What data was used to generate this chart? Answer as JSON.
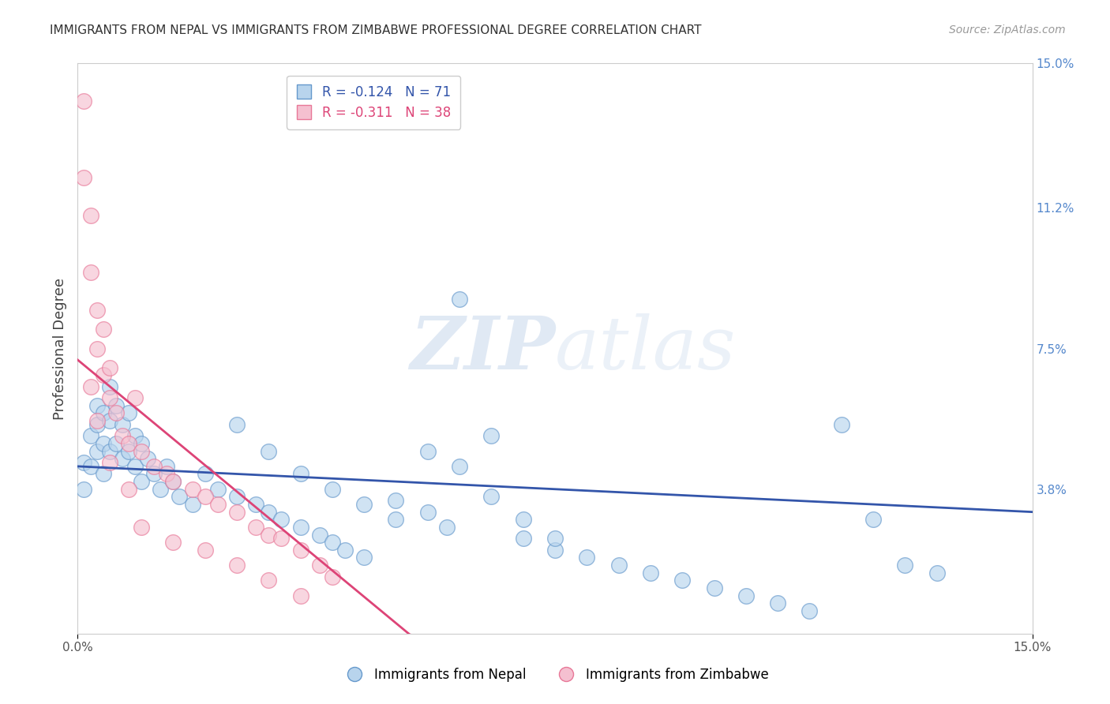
{
  "title": "IMMIGRANTS FROM NEPAL VS IMMIGRANTS FROM ZIMBABWE PROFESSIONAL DEGREE CORRELATION CHART",
  "source": "Source: ZipAtlas.com",
  "ylabel": "Professional Degree",
  "xlim": [
    0.0,
    0.15
  ],
  "ylim": [
    0.0,
    0.15
  ],
  "nepal_R": -0.124,
  "nepal_N": 71,
  "zimbabwe_R": -0.311,
  "zimbabwe_N": 38,
  "nepal_color": "#b8d4ed",
  "nepal_edge_color": "#6699cc",
  "zimbabwe_color": "#f5c0d0",
  "zimbabwe_edge_color": "#e87898",
  "nepal_line_color": "#3355aa",
  "zimbabwe_line_color": "#dd4477",
  "watermark_zip": "ZIP",
  "watermark_atlas": "atlas",
  "background_color": "#ffffff",
  "grid_color": "#cccccc",
  "legend_nepal_label": "Immigrants from Nepal",
  "legend_zimbabwe_label": "Immigrants from Zimbabwe",
  "nepal_scatter_x": [
    0.001,
    0.001,
    0.002,
    0.002,
    0.003,
    0.003,
    0.003,
    0.004,
    0.004,
    0.004,
    0.005,
    0.005,
    0.005,
    0.006,
    0.006,
    0.007,
    0.007,
    0.008,
    0.008,
    0.009,
    0.009,
    0.01,
    0.01,
    0.011,
    0.012,
    0.013,
    0.014,
    0.015,
    0.016,
    0.018,
    0.02,
    0.022,
    0.025,
    0.028,
    0.03,
    0.032,
    0.035,
    0.038,
    0.04,
    0.042,
    0.045,
    0.05,
    0.055,
    0.058,
    0.06,
    0.065,
    0.07,
    0.075,
    0.08,
    0.085,
    0.09,
    0.095,
    0.1,
    0.105,
    0.11,
    0.115,
    0.12,
    0.125,
    0.13,
    0.135,
    0.025,
    0.03,
    0.035,
    0.04,
    0.045,
    0.05,
    0.055,
    0.06,
    0.065,
    0.07,
    0.075
  ],
  "nepal_scatter_y": [
    0.045,
    0.038,
    0.052,
    0.044,
    0.06,
    0.055,
    0.048,
    0.058,
    0.05,
    0.042,
    0.065,
    0.056,
    0.048,
    0.06,
    0.05,
    0.055,
    0.046,
    0.058,
    0.048,
    0.052,
    0.044,
    0.05,
    0.04,
    0.046,
    0.042,
    0.038,
    0.044,
    0.04,
    0.036,
    0.034,
    0.042,
    0.038,
    0.036,
    0.034,
    0.032,
    0.03,
    0.028,
    0.026,
    0.024,
    0.022,
    0.02,
    0.035,
    0.032,
    0.028,
    0.088,
    0.052,
    0.025,
    0.022,
    0.02,
    0.018,
    0.016,
    0.014,
    0.012,
    0.01,
    0.008,
    0.006,
    0.055,
    0.03,
    0.018,
    0.016,
    0.055,
    0.048,
    0.042,
    0.038,
    0.034,
    0.03,
    0.048,
    0.044,
    0.036,
    0.03,
    0.025
  ],
  "zimbabwe_scatter_x": [
    0.001,
    0.001,
    0.002,
    0.002,
    0.003,
    0.003,
    0.004,
    0.004,
    0.005,
    0.005,
    0.006,
    0.007,
    0.008,
    0.009,
    0.01,
    0.012,
    0.014,
    0.015,
    0.018,
    0.02,
    0.022,
    0.025,
    0.028,
    0.03,
    0.032,
    0.035,
    0.038,
    0.04,
    0.002,
    0.003,
    0.005,
    0.008,
    0.01,
    0.015,
    0.02,
    0.025,
    0.03,
    0.035
  ],
  "zimbabwe_scatter_y": [
    0.14,
    0.12,
    0.11,
    0.095,
    0.085,
    0.075,
    0.08,
    0.068,
    0.07,
    0.062,
    0.058,
    0.052,
    0.05,
    0.062,
    0.048,
    0.044,
    0.042,
    0.04,
    0.038,
    0.036,
    0.034,
    0.032,
    0.028,
    0.026,
    0.025,
    0.022,
    0.018,
    0.015,
    0.065,
    0.056,
    0.045,
    0.038,
    0.028,
    0.024,
    0.022,
    0.018,
    0.014,
    0.01
  ],
  "nepal_line_x0": 0.0,
  "nepal_line_y0": 0.044,
  "nepal_line_x1": 0.15,
  "nepal_line_y1": 0.032,
  "zimbabwe_line_x0": 0.0,
  "zimbabwe_line_y0": 0.072,
  "zimbabwe_line_x1": 0.052,
  "zimbabwe_line_y1": 0.0
}
